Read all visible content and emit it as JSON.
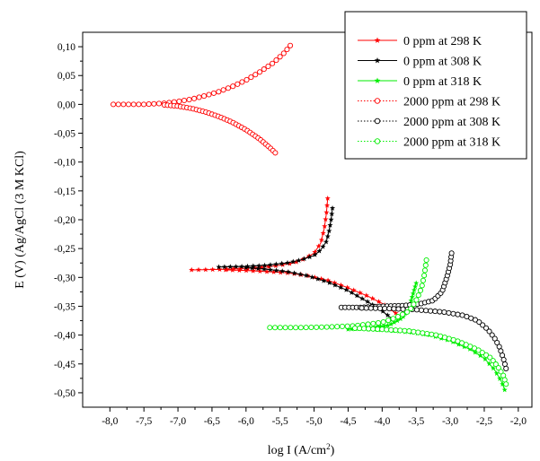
{
  "chart_data": {
    "type": "scatter",
    "xlabel_main": "log I (A/cm",
    "xlabel_sup": "2",
    "xlabel_close": ")",
    "ylabel": "E (V) (Ag/AgCl (3 M KCl)",
    "xlim": [
      -8.4,
      -1.8
    ],
    "ylim": [
      -0.525,
      0.125
    ],
    "x_ticks": [
      -8.0,
      -7.5,
      -7.0,
      -6.5,
      -6.0,
      -5.5,
      -5.0,
      -4.5,
      -4.0,
      -3.5,
      -3.0,
      -2.5,
      -2.0
    ],
    "x_tick_labels": [
      "-8,0",
      "-7,5",
      "-7,0",
      "-6,5",
      "-6,0",
      "-5,5",
      "-5,0",
      "-4,5",
      "-4,0",
      "-3,5",
      "-3,0",
      "-2,5",
      "-2,0"
    ],
    "y_ticks": [
      0.1,
      0.05,
      0.0,
      -0.05,
      -0.1,
      -0.15,
      -0.2,
      -0.25,
      -0.3,
      -0.35,
      -0.4,
      -0.45,
      -0.5
    ],
    "y_tick_labels": [
      "0,10",
      "0,05",
      "0,00",
      "-0,05",
      "-0,10",
      "-0,15",
      "-0,20",
      "-0,25",
      "-0,30",
      "-0,35",
      "-0,40",
      "-0,45",
      "-0,50"
    ],
    "grid": false,
    "legend_position": "top-right",
    "series": [
      {
        "name": "0 ppm at 298 K",
        "color": "#ff0000",
        "line": "solid",
        "marker": "star",
        "branches": [
          {
            "x": [
              -6.8,
              -6.3,
              -5.95,
              -5.7,
              -5.5,
              -5.3,
              -5.15,
              -5.0,
              -4.9,
              -4.85,
              -4.82,
              -4.8
            ],
            "y": [
              -0.287,
              -0.286,
              -0.284,
              -0.282,
              -0.279,
              -0.275,
              -0.268,
              -0.258,
              -0.24,
              -0.215,
              -0.19,
              -0.163
            ]
          },
          {
            "x": [
              -6.3,
              -6.0,
              -5.7,
              -5.4,
              -5.1,
              -4.8,
              -4.5,
              -4.2,
              -4.0,
              -3.8
            ],
            "y": [
              -0.287,
              -0.288,
              -0.29,
              -0.292,
              -0.297,
              -0.305,
              -0.318,
              -0.333,
              -0.345,
              -0.362
            ]
          }
        ]
      },
      {
        "name": "0 ppm at 308 K",
        "color": "#000000",
        "line": "solid",
        "marker": "star",
        "branches": [
          {
            "x": [
              -6.4,
              -6.0,
              -5.7,
              -5.4,
              -5.2,
              -5.0,
              -4.9,
              -4.82,
              -4.78,
              -4.75,
              -4.73
            ],
            "y": [
              -0.282,
              -0.281,
              -0.279,
              -0.275,
              -0.27,
              -0.262,
              -0.252,
              -0.238,
              -0.22,
              -0.2,
              -0.18
            ]
          },
          {
            "x": [
              -6.0,
              -5.7,
              -5.4,
              -5.1,
              -4.8,
              -4.5,
              -4.2,
              -4.0,
              -3.85
            ],
            "y": [
              -0.283,
              -0.286,
              -0.29,
              -0.297,
              -0.308,
              -0.323,
              -0.343,
              -0.358,
              -0.372
            ]
          }
        ]
      },
      {
        "name": "0 ppm at 318 K",
        "color": "#00ee00",
        "line": "solid",
        "marker": "star",
        "branches": [
          {
            "x": [
              -4.5,
              -4.2,
              -3.9,
              -3.7,
              -3.6,
              -3.55,
              -3.5
            ],
            "y": [
              -0.39,
              -0.388,
              -0.383,
              -0.37,
              -0.35,
              -0.33,
              -0.31
            ]
          },
          {
            "x": [
              -4.2,
              -3.9,
              -3.6,
              -3.3,
              -3.0,
              -2.7,
              -2.5,
              -2.35,
              -2.25,
              -2.2
            ],
            "y": [
              -0.39,
              -0.392,
              -0.395,
              -0.4,
              -0.41,
              -0.425,
              -0.44,
              -0.46,
              -0.48,
              -0.495
            ]
          }
        ]
      },
      {
        "name": "2000 ppm at 298 K",
        "color": "#ff0000",
        "line": "dotted",
        "marker": "circle",
        "branches": [
          {
            "x": [
              -7.95,
              -7.5,
              -7.2,
              -7.0,
              -6.8,
              -6.6,
              -6.4,
              -6.2,
              -6.0,
              -5.8,
              -5.6,
              -5.45,
              -5.35
            ],
            "y": [
              0.0,
              0.0,
              0.002,
              0.005,
              0.009,
              0.015,
              0.022,
              0.031,
              0.042,
              0.056,
              0.072,
              0.088,
              0.102
            ]
          },
          {
            "x": [
              -7.2,
              -7.0,
              -6.8,
              -6.6,
              -6.4,
              -6.2,
              -6.0,
              -5.8,
              -5.65,
              -5.57
            ],
            "y": [
              -0.001,
              -0.003,
              -0.007,
              -0.013,
              -0.021,
              -0.031,
              -0.044,
              -0.06,
              -0.075,
              -0.084
            ]
          }
        ]
      },
      {
        "name": "2000 ppm at 308 K",
        "color": "#000000",
        "line": "dotted",
        "marker": "circle",
        "branches": [
          {
            "x": [
              -4.6,
              -4.3,
              -4.0,
              -3.7,
              -3.45,
              -3.25,
              -3.12,
              -3.05,
              -3.0,
              -2.98
            ],
            "y": [
              -0.352,
              -0.352,
              -0.35,
              -0.349,
              -0.346,
              -0.34,
              -0.325,
              -0.3,
              -0.278,
              -0.258
            ]
          },
          {
            "x": [
              -4.3,
              -3.9,
              -3.5,
              -3.1,
              -2.8,
              -2.6,
              -2.45,
              -2.35,
              -2.28,
              -2.22,
              -2.18
            ],
            "y": [
              -0.353,
              -0.354,
              -0.356,
              -0.36,
              -0.366,
              -0.375,
              -0.39,
              -0.405,
              -0.42,
              -0.44,
              -0.458
            ]
          }
        ]
      },
      {
        "name": "2000 ppm at 318 K",
        "color": "#00ee00",
        "line": "dotted",
        "marker": "circle",
        "branches": [
          {
            "x": [
              -5.65,
              -5.2,
              -4.8,
              -4.4,
              -4.0,
              -3.8,
              -3.6,
              -3.5,
              -3.42,
              -3.38,
              -3.35
            ],
            "y": [
              -0.387,
              -0.387,
              -0.386,
              -0.384,
              -0.378,
              -0.37,
              -0.358,
              -0.34,
              -0.318,
              -0.295,
              -0.27
            ]
          },
          {
            "x": [
              -4.4,
              -4.0,
              -3.6,
              -3.2,
              -2.9,
              -2.6,
              -2.4,
              -2.3,
              -2.22,
              -2.18
            ],
            "y": [
              -0.388,
              -0.39,
              -0.393,
              -0.4,
              -0.41,
              -0.425,
              -0.44,
              -0.455,
              -0.47,
              -0.485
            ]
          }
        ]
      }
    ]
  }
}
